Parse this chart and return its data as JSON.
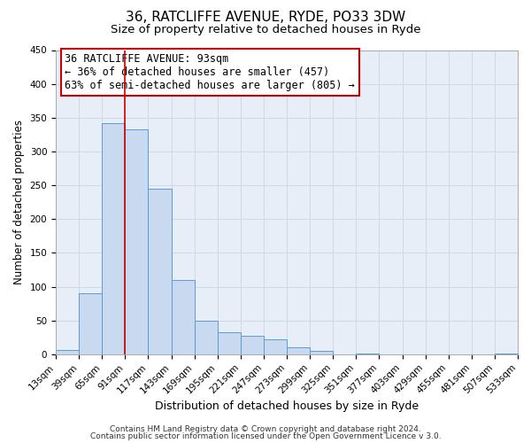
{
  "title1": "36, RATCLIFFE AVENUE, RYDE, PO33 3DW",
  "title2": "Size of property relative to detached houses in Ryde",
  "xlabel": "Distribution of detached houses by size in Ryde",
  "ylabel": "Number of detached properties",
  "footer1": "Contains HM Land Registry data © Crown copyright and database right 2024.",
  "footer2": "Contains public sector information licensed under the Open Government Licence v 3.0.",
  "annotation_title": "36 RATCLIFFE AVENUE: 93sqm",
  "annotation_line1": "← 36% of detached houses are smaller (457)",
  "annotation_line2": "63% of semi-detached houses are larger (805) →",
  "bin_edges": [
    13,
    39,
    65,
    91,
    117,
    143,
    169,
    195,
    221,
    247,
    273,
    299,
    325,
    351,
    377,
    403,
    429,
    455,
    481,
    507,
    533
  ],
  "bin_counts": [
    7,
    90,
    342,
    333,
    245,
    110,
    50,
    33,
    27,
    22,
    10,
    5,
    0,
    1,
    0,
    0,
    0,
    0,
    0,
    1
  ],
  "bar_color": "#c9d9f0",
  "bar_edge_color": "#5b9bd5",
  "vline_color": "#cc0000",
  "vline_x": 91,
  "annotation_box_facecolor": "#ffffff",
  "annotation_box_edgecolor": "#cc0000",
  "grid_color": "#d0d8e8",
  "plot_bg_color": "#e8eef8",
  "fig_bg_color": "#ffffff",
  "ylim": [
    0,
    450
  ],
  "yticks": [
    0,
    50,
    100,
    150,
    200,
    250,
    300,
    350,
    400,
    450
  ],
  "title1_fontsize": 11,
  "title2_fontsize": 9.5,
  "xlabel_fontsize": 9,
  "ylabel_fontsize": 8.5,
  "tick_fontsize": 7.5,
  "annotation_fontsize": 8.5,
  "footer_fontsize": 6.5
}
